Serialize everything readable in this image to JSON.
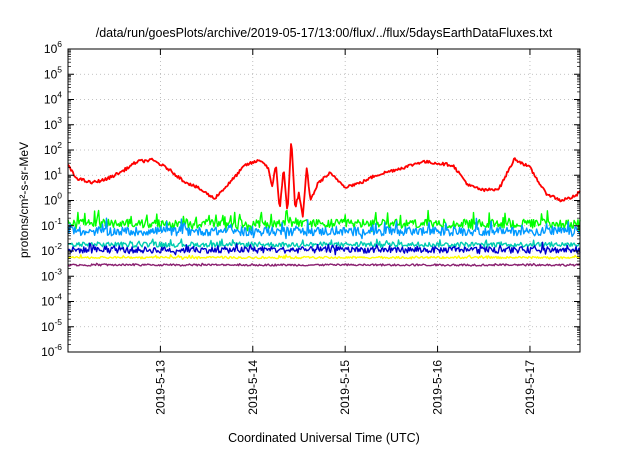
{
  "chart_data": {
    "type": "line",
    "title": "/data/run/goesPlots/archive/2019-05-17/13:00/flux/../flux/5daysEarthDataFluxes.txt",
    "xlabel": "Coordinated Universal Time (UTC)",
    "ylabel": "protons/cm²-s-sr-MeV",
    "yscale": "log",
    "ylim": [
      1e-06,
      1000000.0
    ],
    "xlim": [
      "2019-05-12 00:00",
      "2019-05-17 13:00"
    ],
    "grid": true,
    "x_ticks": [
      "2019-5-13",
      "2019-5-14",
      "2019-5-15",
      "2019-5-16",
      "2019-5-17"
    ],
    "y_ticks": [
      {
        "base": "10",
        "exp": "-6"
      },
      {
        "base": "10",
        "exp": "-5"
      },
      {
        "base": "10",
        "exp": "-4"
      },
      {
        "base": "10",
        "exp": "-3"
      },
      {
        "base": "10",
        "exp": "-2"
      },
      {
        "base": "10",
        "exp": "-1"
      },
      {
        "base": "10",
        "exp": "0"
      },
      {
        "base": "10",
        "exp": "1"
      },
      {
        "base": "10",
        "exp": "2"
      },
      {
        "base": "10",
        "exp": "3"
      },
      {
        "base": "10",
        "exp": "4"
      },
      {
        "base": "10",
        "exp": "5"
      },
      {
        "base": "10",
        "exp": "6"
      }
    ],
    "series": [
      {
        "color": "#ff0000",
        "noise": 0.12,
        "x": [
          "2019-05-12 00:00",
          "2019-05-12 02:00",
          "2019-05-12 06:00",
          "2019-05-12 10:00",
          "2019-05-12 14:00",
          "2019-05-12 18:00",
          "2019-05-12 22:00",
          "2019-05-13 02:00",
          "2019-05-13 06:00",
          "2019-05-13 10:00",
          "2019-05-13 14:00",
          "2019-05-13 18:00",
          "2019-05-13 22:00",
          "2019-05-14 02:00",
          "2019-05-14 04:00",
          "2019-05-14 05:00",
          "2019-05-14 06:00",
          "2019-05-14 07:00",
          "2019-05-14 08:00",
          "2019-05-14 09:00",
          "2019-05-14 10:00",
          "2019-05-14 11:00",
          "2019-05-14 12:00",
          "2019-05-14 13:00",
          "2019-05-14 14:00",
          "2019-05-14 15:00",
          "2019-05-14 17:00",
          "2019-05-14 20:00",
          "2019-05-15 00:00",
          "2019-05-15 04:00",
          "2019-05-15 08:00",
          "2019-05-15 12:00",
          "2019-05-15 16:00",
          "2019-05-15 20:00",
          "2019-05-16 00:00",
          "2019-05-16 04:00",
          "2019-05-16 08:00",
          "2019-05-16 12:00",
          "2019-05-16 16:00",
          "2019-05-16 20:00",
          "2019-05-17 00:00",
          "2019-05-17 04:00",
          "2019-05-17 08:00",
          "2019-05-17 12:00",
          "2019-05-17 13:00"
        ],
        "y": [
          25,
          8,
          5,
          7,
          14,
          35,
          40,
          18,
          6,
          3,
          1.2,
          5,
          25,
          40,
          20,
          3,
          30,
          0.4,
          20,
          0.3,
          300,
          0.5,
          2,
          0.2,
          20,
          1,
          5,
          12,
          3.5,
          5,
          10,
          15,
          22,
          35,
          30,
          25,
          4,
          2.5,
          3,
          45,
          20,
          2,
          1,
          1.5,
          2.5
        ]
      },
      {
        "color": "#00ff00",
        "base": 0.12,
        "noise": 0.35,
        "spikes": 0.3
      },
      {
        "color": "#0099ff",
        "base": 0.06,
        "noise": 0.35,
        "spikes": 0.25
      },
      {
        "color": "#00ccb0",
        "base": 0.018,
        "noise": 0.2,
        "spikes": 0.1
      },
      {
        "color": "#0000cc",
        "base": 0.011,
        "noise": 0.25,
        "spikes": 0.15
      },
      {
        "color": "#ffff00",
        "base": 0.0055,
        "noise": 0.08,
        "spikes": 0.05
      },
      {
        "color": "#8a2070",
        "base": 0.0028,
        "noise": 0.08,
        "spikes": 0.02
      }
    ]
  }
}
